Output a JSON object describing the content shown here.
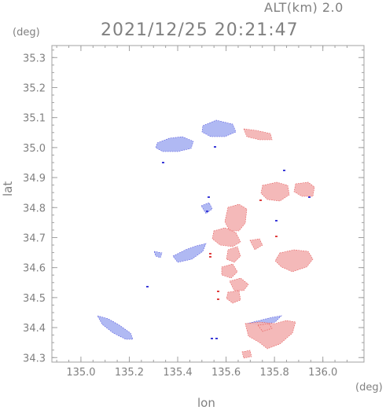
{
  "header": {
    "altitude_label": "ALT(km) 2.0",
    "timestamp": "2021/12/25 20:21:47"
  },
  "axes": {
    "y_unit": "(deg)",
    "x_unit": "(deg)",
    "xlabel": "lon",
    "ylabel": "lat",
    "xlim": [
      134.88,
      136.17
    ],
    "ylim": [
      34.285,
      35.34
    ],
    "x_ticks": [
      "135.0",
      "135.2",
      "135.4",
      "135.6",
      "135.8",
      "136.0"
    ],
    "y_ticks": [
      "34.3",
      "34.4",
      "34.5",
      "34.6",
      "34.7",
      "34.8",
      "34.9",
      "35.0",
      "35.1",
      "35.2",
      "35.3"
    ],
    "grid": false
  },
  "colors": {
    "frame": "#a0a0a0",
    "approaching": "#aab4f2",
    "receding": "#f4b4b4",
    "edge_blue": "#3a3ad8",
    "edge_red": "#e04040"
  }
}
